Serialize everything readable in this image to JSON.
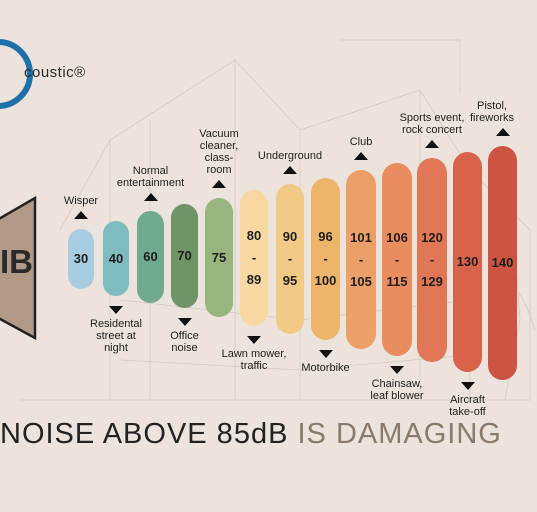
{
  "brand": {
    "logo_text": "coustic®"
  },
  "speaker": {
    "unit": "IB"
  },
  "headline": {
    "part1": "NOISE ABOVE 85dB ",
    "part2": "IS DAMAGING"
  },
  "colors": {
    "background": "#ece4dc",
    "text": "#1e1e1e",
    "logo_blue": "#1f6fa8",
    "headline_accent": "#8a7a6a"
  },
  "levels": [
    {
      "top": "30",
      "mid": "",
      "bot": "",
      "label": "Wisper",
      "label_pos": "above",
      "color": "#a9cde0"
    },
    {
      "top": "40",
      "mid": "",
      "bot": "",
      "label": "Residental\nstreet at\nnight",
      "label_pos": "below",
      "color": "#7fbcc2"
    },
    {
      "top": "60",
      "mid": "",
      "bot": "",
      "label": "Normal\nentertainment",
      "label_pos": "above",
      "color": "#6faa8e"
    },
    {
      "top": "70",
      "mid": "",
      "bot": "",
      "label": "Office\nnoise",
      "label_pos": "below",
      "color": "#6f9468"
    },
    {
      "top": "75",
      "mid": "",
      "bot": "",
      "label": "Vacuum\ncleaner,\nclass-\nroom",
      "label_pos": "above",
      "color": "#98b57e"
    },
    {
      "top": "80",
      "mid": "-",
      "bot": "89",
      "label": "Lawn mower,\ntraffic",
      "label_pos": "below",
      "color": "#f6d8a0"
    },
    {
      "top": "90",
      "mid": "-",
      "bot": "95",
      "label": "Underground",
      "label_pos": "above",
      "color": "#f3c986"
    },
    {
      "top": "96",
      "mid": "-",
      "bot": "100",
      "label": "Motorbike",
      "label_pos": "below",
      "color": "#eeb56a"
    },
    {
      "top": "101",
      "mid": "-",
      "bot": "105",
      "label": "Club",
      "label_pos": "above",
      "color": "#ec9f68"
    },
    {
      "top": "106",
      "mid": "-",
      "bot": "115",
      "label": "Chainsaw,\nleaf blower",
      "label_pos": "below",
      "color": "#e98c5e"
    },
    {
      "top": "120",
      "mid": "-",
      "bot": "129",
      "label": "Sports event,\nrock concert",
      "label_pos": "above",
      "color": "#e27755"
    },
    {
      "top": "130",
      "mid": "",
      "bot": "",
      "label": "Aircraft\ntake-off",
      "label_pos": "below",
      "color": "#d8624a"
    },
    {
      "top": "140",
      "mid": "",
      "bot": "",
      "label": "Pistol,\nfireworks",
      "label_pos": "above",
      "color": "#cd5442"
    }
  ]
}
